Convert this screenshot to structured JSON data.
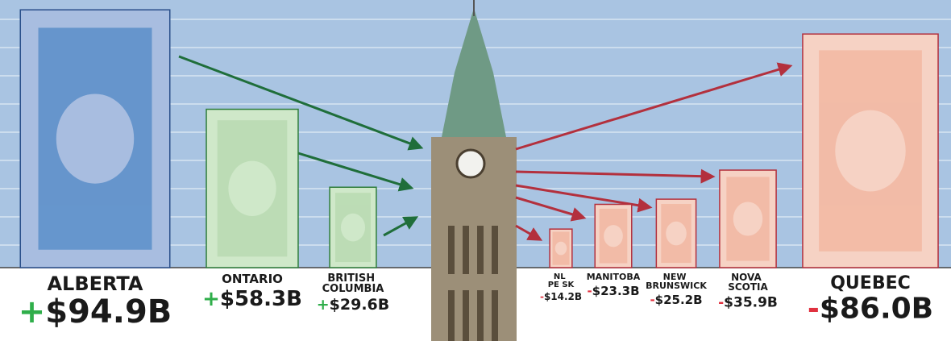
{
  "chart_data": {
    "type": "bar",
    "categories": [
      "ALBERTA",
      "ONTARIO",
      "BRITISH COLUMBIA",
      "NL PE SK",
      "MANITOBA",
      "NEW BRUNSWICK",
      "NOVA SCOTIA",
      "QUEBEC"
    ],
    "values": [
      94.9,
      58.3,
      29.6,
      -14.2,
      -23.3,
      -25.2,
      -35.9,
      -86.0
    ],
    "value_labels": [
      "+$94.9B",
      "+$58.3B",
      "+$29.6B",
      "-$14.2B",
      "-$23.3B",
      "-$25.2B",
      "-$35.9B",
      "-$86.0B"
    ],
    "colors": [
      "#5b8fc9",
      "#cfe8c9",
      "#cfe8c9",
      "#f6d2c4",
      "#f6d2c4",
      "#f6d2c4",
      "#f6d2c4",
      "#f6d2c4"
    ]
  }
}
